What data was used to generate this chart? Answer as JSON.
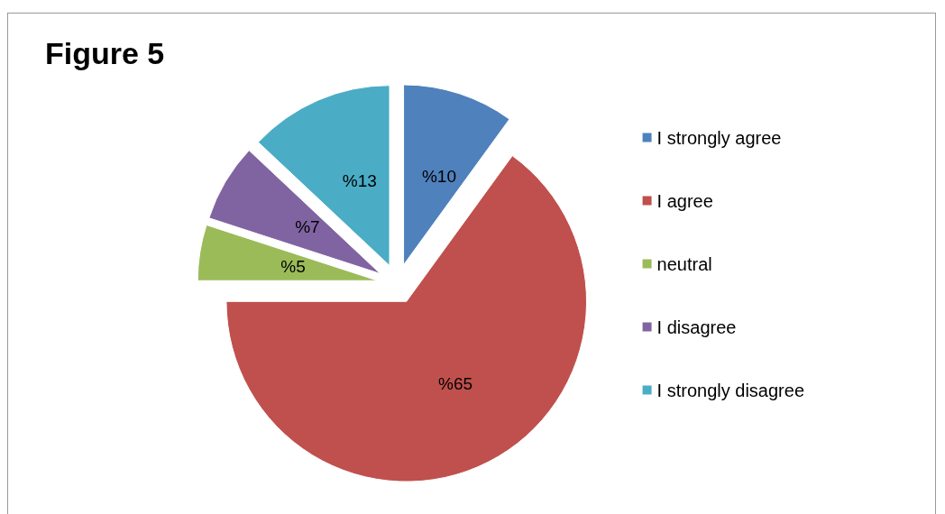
{
  "chart_data": {
    "type": "pie",
    "title": "Figure 5",
    "categories": [
      "I strongly agree",
      "I agree",
      "neutral",
      "I disagree",
      "I strongly disagree"
    ],
    "values": [
      10,
      65,
      5,
      7,
      13
    ],
    "colors": [
      "#4f81bd",
      "#c0504d",
      "#9bbb59",
      "#8064a2",
      "#4bacc6"
    ],
    "value_labels": [
      "%10",
      "%65",
      "%5",
      "%7",
      "%13"
    ],
    "legend": "right"
  }
}
